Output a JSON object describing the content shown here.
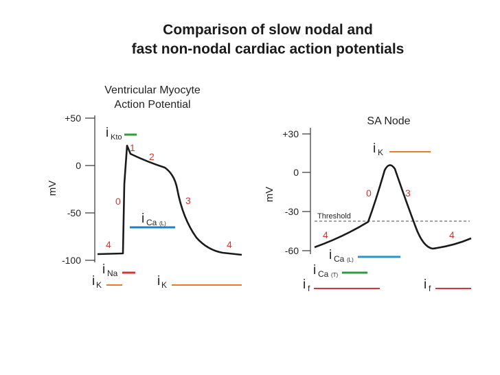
{
  "title": {
    "line1": "Comparison of slow nodal and",
    "line2": "fast non-nodal cardiac action potentials"
  },
  "left_panel": {
    "heading_line1": "Ventricular Myocyte",
    "heading_line2": "Action Potential",
    "y_axis_label": "mV",
    "y_ticks": [
      "+50",
      "0",
      "-50",
      "-100"
    ],
    "phases": [
      "0",
      "1",
      "2",
      "3",
      "4",
      "4"
    ],
    "currents": [
      {
        "main": "i",
        "sub": "Kto",
        "color": "#2e9b3c"
      },
      {
        "main": "i",
        "sub": "Ca",
        "sub2": "(L)",
        "color": "#1f7fc9"
      },
      {
        "main": "i",
        "sub": "Na",
        "color": "#d9342b"
      },
      {
        "main": "i",
        "sub": "K",
        "color": "#ec7a1e"
      },
      {
        "main": "i",
        "sub": "K",
        "color": "#ec7a1e"
      }
    ]
  },
  "right_panel": {
    "heading": "SA Node",
    "y_axis_label": "mV",
    "y_ticks": [
      "+30",
      "0",
      "-30",
      "-60"
    ],
    "threshold_label": "Threshold",
    "phases": [
      "0",
      "3",
      "4",
      "4"
    ],
    "currents": [
      {
        "main": "i",
        "sub": "K",
        "color": "#ec7a1e"
      },
      {
        "main": "i",
        "sub": "Ca",
        "sub2": "(L)",
        "color": "#1f9bc9"
      },
      {
        "main": "i",
        "sub": "Ca",
        "sub2": "(T)",
        "color": "#2e9b3c"
      },
      {
        "main": "i",
        "sub": "f",
        "color": "#d9342b"
      },
      {
        "main": "i",
        "sub": "f",
        "color": "#d9342b"
      }
    ]
  },
  "colors": {
    "trace": "#1a1a1a",
    "phase_label": "#d9342b",
    "axis": "#333333"
  }
}
